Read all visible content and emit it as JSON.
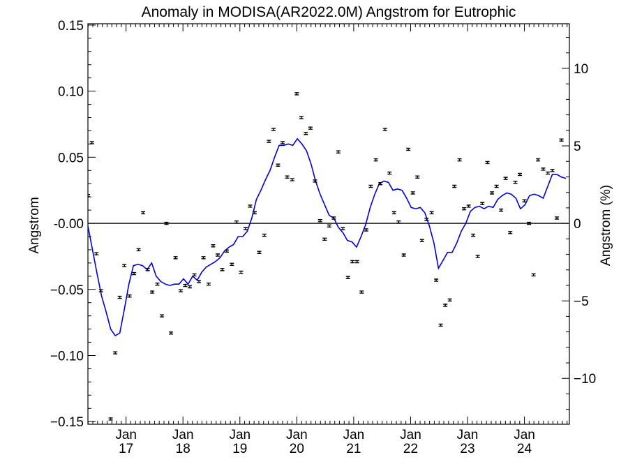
{
  "chart_data": {
    "type": "scatter",
    "title": "Anomaly in MODISA(AR2022.0M) Angstrom for Eutrophic",
    "ylabel": "Angstrom",
    "y2label": "Angstrom (%)",
    "xlim": [
      2016.33,
      2024.79
    ],
    "ylim": [
      -0.152,
      0.151
    ],
    "y2lim": [
      -12.96,
      12.88
    ],
    "yticks": [
      -0.15,
      -0.1,
      -0.05,
      0.0,
      0.05,
      0.1,
      0.15
    ],
    "ytick_labels": [
      "−0.15",
      "−0.10",
      "−0.05",
      "-0.00",
      "0.05",
      "0.10",
      "0.15"
    ],
    "y2ticks": [
      -10,
      -5,
      0,
      5,
      10
    ],
    "y2tick_labels": [
      "−10",
      "−5",
      "0",
      "5",
      "10"
    ],
    "xticks": [
      2017,
      2018,
      2019,
      2020,
      2021,
      2022,
      2023,
      2024
    ],
    "xtick_labels": [
      {
        "top": "Jan",
        "bottom": "17"
      },
      {
        "top": "Jan",
        "bottom": "18"
      },
      {
        "top": "Jan",
        "bottom": "19"
      },
      {
        "top": "Jan",
        "bottom": "20"
      },
      {
        "top": "Jan",
        "bottom": "21"
      },
      {
        "top": "Jan",
        "bottom": "22"
      },
      {
        "top": "Jan",
        "bottom": "23"
      },
      {
        "top": "Jan",
        "bottom": "24"
      }
    ],
    "zero_line": true,
    "series": [
      {
        "style": "points-with-errorbars",
        "color": "#000000",
        "error": 0.0008,
        "points": [
          [
            2016.33,
            0.021
          ],
          [
            2016.4,
            0.061
          ],
          [
            2016.48,
            -0.023
          ],
          [
            2016.56,
            -0.051
          ],
          [
            2016.73,
            -0.148
          ],
          [
            2016.81,
            -0.098
          ],
          [
            2016.89,
            -0.056
          ],
          [
            2016.97,
            -0.032
          ],
          [
            2017.06,
            -0.055
          ],
          [
            2017.14,
            -0.038
          ],
          [
            2017.22,
            -0.02
          ],
          [
            2017.3,
            0.008
          ],
          [
            2017.38,
            -0.035
          ],
          [
            2017.46,
            -0.052
          ],
          [
            2017.55,
            -0.046
          ],
          [
            2017.63,
            -0.07
          ],
          [
            2017.71,
            0.0
          ],
          [
            2017.79,
            -0.083
          ],
          [
            2017.87,
            -0.026
          ],
          [
            2017.96,
            -0.051
          ],
          [
            2018.04,
            -0.047
          ],
          [
            2018.12,
            -0.048
          ],
          [
            2018.2,
            -0.039
          ],
          [
            2018.28,
            -0.044
          ],
          [
            2018.36,
            -0.026
          ],
          [
            2018.45,
            -0.046
          ],
          [
            2018.53,
            -0.017
          ],
          [
            2018.61,
            -0.024
          ],
          [
            2018.69,
            -0.035
          ],
          [
            2018.77,
            -0.021
          ],
          [
            2018.86,
            -0.031
          ],
          [
            2018.94,
            0.001
          ],
          [
            2019.02,
            -0.037
          ],
          [
            2019.1,
            -0.004
          ],
          [
            2019.18,
            0.013
          ],
          [
            2019.26,
            0.008
          ],
          [
            2019.34,
            -0.022
          ],
          [
            2019.43,
            -0.009
          ],
          [
            2019.51,
            0.062
          ],
          [
            2019.59,
            0.071
          ],
          [
            2019.67,
            0.044
          ],
          [
            2019.75,
            0.061
          ],
          [
            2019.83,
            0.035
          ],
          [
            2019.92,
            0.033
          ],
          [
            2020.0,
            0.098
          ],
          [
            2020.08,
            0.08
          ],
          [
            2020.16,
            0.068
          ],
          [
            2020.24,
            0.072
          ],
          [
            2020.32,
            0.032
          ],
          [
            2020.41,
            0.002
          ],
          [
            2020.49,
            -0.012
          ],
          [
            2020.57,
            -0.002
          ],
          [
            2020.65,
            0.004
          ],
          [
            2020.73,
            0.054
          ],
          [
            2020.81,
            -0.004
          ],
          [
            2020.9,
            -0.041
          ],
          [
            2020.98,
            -0.029
          ],
          [
            2021.06,
            -0.029
          ],
          [
            2021.14,
            -0.052
          ],
          [
            2021.22,
            -0.005
          ],
          [
            2021.3,
            0.028
          ],
          [
            2021.39,
            0.048
          ],
          [
            2021.47,
            0.03
          ],
          [
            2021.55,
            0.071
          ],
          [
            2021.63,
            0.038
          ],
          [
            2021.71,
            0.008
          ],
          [
            2021.79,
            0.001
          ],
          [
            2021.88,
            -0.024
          ],
          [
            2021.96,
            0.056
          ],
          [
            2022.04,
            0.023
          ],
          [
            2022.12,
            0.035
          ],
          [
            2022.2,
            -0.013
          ],
          [
            2022.28,
            0.003
          ],
          [
            2022.37,
            0.008
          ],
          [
            2022.45,
            -0.043
          ],
          [
            2022.53,
            -0.077
          ],
          [
            2022.61,
            -0.062
          ],
          [
            2022.69,
            -0.058
          ],
          [
            2022.77,
            0.028
          ],
          [
            2022.86,
            0.048
          ],
          [
            2022.94,
            0.011
          ],
          [
            2023.02,
            0.013
          ],
          [
            2023.1,
            -0.009
          ],
          [
            2023.18,
            -0.025
          ],
          [
            2023.26,
            0.015
          ],
          [
            2023.35,
            0.046
          ],
          [
            2023.43,
            0.023
          ],
          [
            2023.51,
            0.028
          ],
          [
            2023.59,
            0.01
          ],
          [
            2023.67,
            0.034
          ],
          [
            2023.75,
            -0.007
          ],
          [
            2023.84,
            0.031
          ],
          [
            2023.92,
            0.037
          ],
          [
            2024.0,
            0.017
          ],
          [
            2024.08,
            -0.0
          ],
          [
            2024.16,
            -0.039
          ],
          [
            2024.24,
            0.048
          ],
          [
            2024.33,
            0.041
          ],
          [
            2024.41,
            0.038
          ],
          [
            2024.49,
            0.04
          ],
          [
            2024.57,
            0.004
          ],
          [
            2024.65,
            0.063
          ]
        ]
      },
      {
        "style": "line",
        "color": "#0000dd",
        "points": [
          [
            2016.33,
            -0.002
          ],
          [
            2016.41,
            -0.02
          ],
          [
            2016.49,
            -0.038
          ],
          [
            2016.57,
            -0.055
          ],
          [
            2016.65,
            -0.067
          ],
          [
            2016.73,
            -0.08
          ],
          [
            2016.81,
            -0.085
          ],
          [
            2016.89,
            -0.083
          ],
          [
            2016.97,
            -0.065
          ],
          [
            2017.05,
            -0.046
          ],
          [
            2017.13,
            -0.032
          ],
          [
            2017.21,
            -0.031
          ],
          [
            2017.29,
            -0.032
          ],
          [
            2017.37,
            -0.035
          ],
          [
            2017.45,
            -0.03
          ],
          [
            2017.53,
            -0.04
          ],
          [
            2017.61,
            -0.044
          ],
          [
            2017.69,
            -0.046
          ],
          [
            2017.77,
            -0.047
          ],
          [
            2017.85,
            -0.046
          ],
          [
            2017.93,
            -0.046
          ],
          [
            2018.01,
            -0.042
          ],
          [
            2018.09,
            -0.046
          ],
          [
            2018.17,
            -0.04
          ],
          [
            2018.25,
            -0.043
          ],
          [
            2018.33,
            -0.037
          ],
          [
            2018.41,
            -0.033
          ],
          [
            2018.49,
            -0.031
          ],
          [
            2018.57,
            -0.029
          ],
          [
            2018.65,
            -0.026
          ],
          [
            2018.73,
            -0.021
          ],
          [
            2018.81,
            -0.018
          ],
          [
            2018.89,
            -0.016
          ],
          [
            2018.97,
            -0.01
          ],
          [
            2019.05,
            -0.01
          ],
          [
            2019.13,
            -0.006
          ],
          [
            2019.21,
            0.004
          ],
          [
            2019.29,
            0.018
          ],
          [
            2019.37,
            0.025
          ],
          [
            2019.45,
            0.033
          ],
          [
            2019.53,
            0.04
          ],
          [
            2019.61,
            0.05
          ],
          [
            2019.69,
            0.059
          ],
          [
            2019.77,
            0.059
          ],
          [
            2019.85,
            0.06
          ],
          [
            2019.93,
            0.059
          ],
          [
            2020.01,
            0.064
          ],
          [
            2020.09,
            0.06
          ],
          [
            2020.17,
            0.055
          ],
          [
            2020.25,
            0.045
          ],
          [
            2020.33,
            0.032
          ],
          [
            2020.41,
            0.022
          ],
          [
            2020.49,
            0.014
          ],
          [
            2020.57,
            0.006
          ],
          [
            2020.65,
            0.004
          ],
          [
            2020.73,
            -0.003
          ],
          [
            2020.81,
            -0.007
          ],
          [
            2020.89,
            -0.013
          ],
          [
            2020.97,
            -0.014
          ],
          [
            2021.05,
            -0.018
          ],
          [
            2021.13,
            -0.01
          ],
          [
            2021.21,
            -0.001
          ],
          [
            2021.29,
            0.012
          ],
          [
            2021.37,
            0.022
          ],
          [
            2021.45,
            0.03
          ],
          [
            2021.53,
            0.032
          ],
          [
            2021.61,
            0.031
          ],
          [
            2021.69,
            0.025
          ],
          [
            2021.77,
            0.026
          ],
          [
            2021.85,
            0.025
          ],
          [
            2021.93,
            0.019
          ],
          [
            2022.01,
            0.012
          ],
          [
            2022.09,
            0.011
          ],
          [
            2022.17,
            0.012
          ],
          [
            2022.25,
            0.008
          ],
          [
            2022.33,
            -0.002
          ],
          [
            2022.41,
            -0.015
          ],
          [
            2022.49,
            -0.034
          ],
          [
            2022.57,
            -0.028
          ],
          [
            2022.65,
            -0.022
          ],
          [
            2022.73,
            -0.022
          ],
          [
            2022.81,
            -0.015
          ],
          [
            2022.89,
            -0.006
          ],
          [
            2022.97,
            -0.0
          ],
          [
            2023.05,
            0.009
          ],
          [
            2023.13,
            0.012
          ],
          [
            2023.21,
            0.013
          ],
          [
            2023.29,
            0.011
          ],
          [
            2023.37,
            0.013
          ],
          [
            2023.45,
            0.012
          ],
          [
            2023.53,
            0.018
          ],
          [
            2023.61,
            0.021
          ],
          [
            2023.69,
            0.023
          ],
          [
            2023.77,
            0.022
          ],
          [
            2023.85,
            0.019
          ],
          [
            2023.93,
            0.011
          ],
          [
            2024.01,
            0.014
          ],
          [
            2024.09,
            0.021
          ],
          [
            2024.17,
            0.022
          ],
          [
            2024.25,
            0.021
          ],
          [
            2024.33,
            0.019
          ],
          [
            2024.41,
            0.028
          ],
          [
            2024.49,
            0.037
          ],
          [
            2024.57,
            0.037
          ],
          [
            2024.65,
            0.035
          ],
          [
            2024.73,
            0.034
          ]
        ]
      }
    ]
  }
}
